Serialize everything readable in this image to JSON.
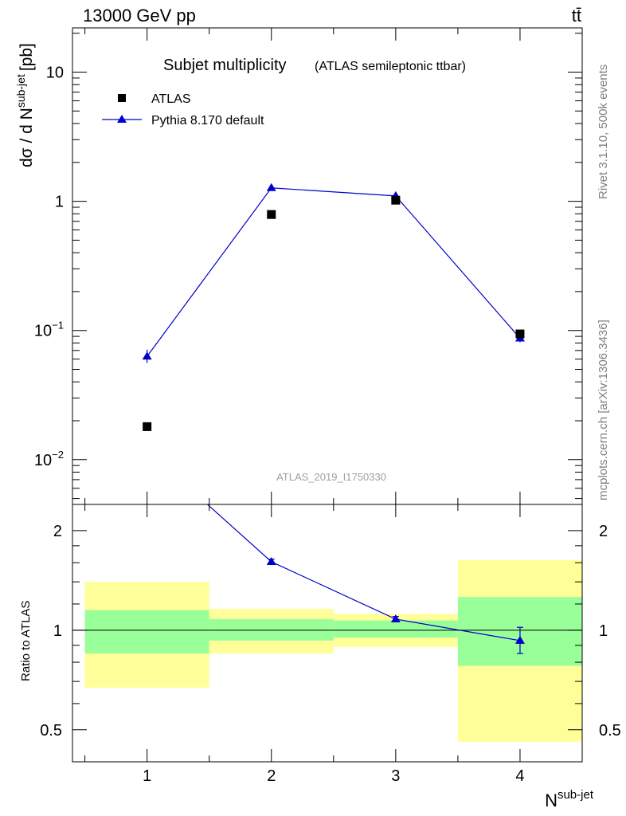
{
  "header": {
    "energy_label": "13000 GeV pp",
    "process_label": "tt̄"
  },
  "side_text": {
    "rivet": "Rivet 3.1.10,  500k events",
    "source": "mcplots.cern.ch [arXiv:1306.3436]"
  },
  "chart_data": [
    {
      "type": "scatter",
      "title": "Subjet multiplicity",
      "subtitle": "(ATLAS semileptonic ttbar)",
      "analysis_id": "ATLAS_2019_I1750330",
      "ylabel": {
        "main": "dσ / d N",
        "sup": "sub-jet",
        "unit": "[pb]"
      },
      "yscale": "log",
      "xlim": [
        0.4,
        4.5
      ],
      "ylim": [
        0.0045,
        22
      ],
      "y_ticks": [
        {
          "value": 0.01,
          "base": "10",
          "exp": "−2"
        },
        {
          "value": 0.1,
          "base": "10",
          "exp": "−1"
        },
        {
          "value": 1,
          "base": "1",
          "exp": ""
        },
        {
          "value": 10,
          "base": "10",
          "exp": ""
        }
      ],
      "legend_position": "top-left",
      "series": [
        {
          "name": "ATLAS",
          "marker": "square",
          "color": "#000000",
          "x": [
            1,
            2,
            3,
            4
          ],
          "y": [
            0.018,
            0.79,
            1.02,
            0.094
          ]
        },
        {
          "name": "Pythia 8.170 default",
          "marker": "triangle",
          "color": "#0000cc",
          "x": [
            1,
            2,
            3,
            4
          ],
          "y": [
            0.063,
            1.27,
            1.1,
            0.087
          ],
          "y_err_low": [
            0.056,
            1.25,
            1.08,
            0.081
          ],
          "y_err_high": [
            0.071,
            1.29,
            1.12,
            0.093
          ]
        }
      ]
    },
    {
      "type": "line",
      "ylabel": "Ratio to ATLAS",
      "xlabel": {
        "main": "N",
        "sup": "sub-jet"
      },
      "yscale": "log",
      "xlim": [
        0.4,
        4.5
      ],
      "ylim": [
        0.4,
        2.4
      ],
      "x_ticks": [
        "1",
        "2",
        "3",
        "4"
      ],
      "y_ticks": [
        {
          "value": 0.5,
          "label": "0.5"
        },
        {
          "value": 1,
          "label": "1"
        },
        {
          "value": 2,
          "label": "2"
        }
      ],
      "bands": [
        {
          "x_low": 0.5,
          "x_high": 1.5,
          "inner": [
            0.85,
            1.15
          ],
          "outer": [
            0.67,
            1.4
          ]
        },
        {
          "x_low": 1.5,
          "x_high": 2.5,
          "inner": [
            0.93,
            1.08
          ],
          "outer": [
            0.85,
            1.16
          ]
        },
        {
          "x_low": 2.5,
          "x_high": 3.5,
          "inner": [
            0.95,
            1.07
          ],
          "outer": [
            0.89,
            1.12
          ]
        },
        {
          "x_low": 3.5,
          "x_high": 4.5,
          "inner": [
            0.78,
            1.26
          ],
          "outer": [
            0.46,
            1.63
          ]
        }
      ],
      "band_colors": {
        "inner": "#99ff99",
        "outer": "#ffff99"
      },
      "reference_line": 1,
      "series": [
        {
          "name": "Pythia 8.170 default",
          "color": "#0000cc",
          "x": [
            1,
            2,
            3,
            4
          ],
          "y": [
            3.5,
            1.61,
            1.08,
            0.93
          ],
          "y_err_low": [
            null,
            1.58,
            1.06,
            0.85
          ],
          "y_err_high": [
            null,
            1.64,
            1.1,
            1.02
          ]
        }
      ]
    }
  ]
}
